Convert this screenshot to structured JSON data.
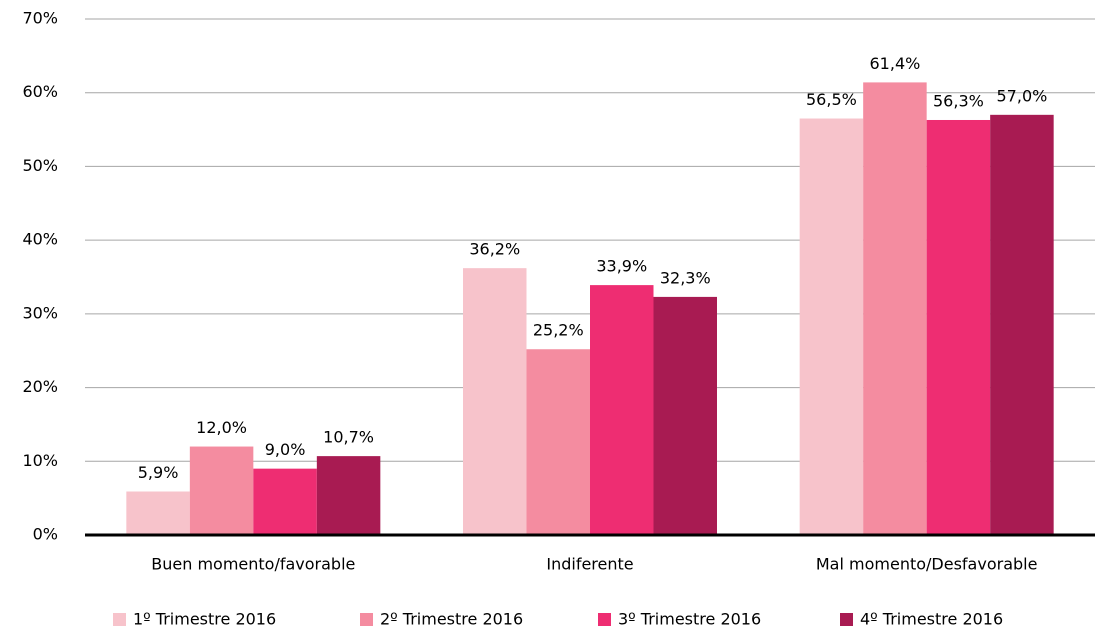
{
  "chart_data": {
    "type": "bar",
    "categories": [
      "Buen momento/favorable",
      "Indiferente",
      "Mal momento/Desfavorable"
    ],
    "series": [
      {
        "name": "1º Trimestre 2016",
        "color": "#f7c3cb",
        "values": [
          5.9,
          36.2,
          56.5
        ],
        "value_labels": [
          "5,9%",
          "36,2%",
          "56,5%"
        ]
      },
      {
        "name": "2º Trimestre 2016",
        "color": "#f48ca0",
        "values": [
          12.0,
          25.2,
          61.4
        ],
        "value_labels": [
          "12,0%",
          "25,2%",
          "61,4%"
        ]
      },
      {
        "name": "3º Trimestre 2016",
        "color": "#ee2d72",
        "values": [
          9.0,
          33.9,
          56.3
        ],
        "value_labels": [
          "9,0%",
          "33,9%",
          "56,3%"
        ]
      },
      {
        "name": "4º Trimestre 2016",
        "color": "#a81b52",
        "values": [
          10.7,
          32.3,
          57.0
        ],
        "value_labels": [
          "10,7%",
          "32,3%",
          "57,0%"
        ]
      }
    ],
    "ylim": [
      0,
      70
    ],
    "yticks": [
      {
        "value": 0,
        "label": "0%"
      },
      {
        "value": 10,
        "label": "10%"
      },
      {
        "value": 20,
        "label": "20%"
      },
      {
        "value": 30,
        "label": "30%"
      },
      {
        "value": 40,
        "label": "40%"
      },
      {
        "value": 50,
        "label": "50%"
      },
      {
        "value": 60,
        "label": "60%"
      },
      {
        "value": 70,
        "label": "70%"
      }
    ],
    "grid": true,
    "legend": "bottom"
  }
}
